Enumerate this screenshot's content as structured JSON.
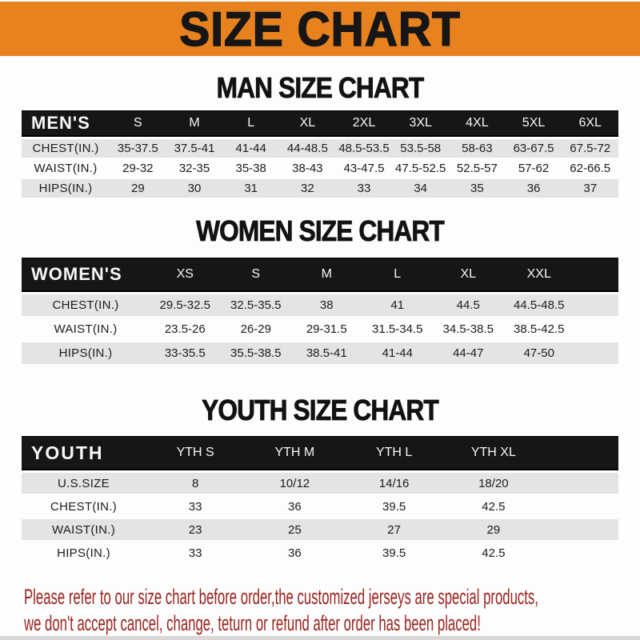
{
  "banner": {
    "title": "SIZE CHART"
  },
  "colors": {
    "banner_bg": "#E8821E",
    "band_bg": "#161616",
    "row_gray": "#E5E4E2",
    "footer_red": "#9B231E"
  },
  "sections": [
    {
      "heading": "MAN SIZE CHART",
      "table": {
        "label": "MEN'S",
        "columns": [
          "S",
          "M",
          "L",
          "XL",
          "2XL",
          "3XL",
          "4XL",
          "5XL",
          "6XL"
        ],
        "rows": [
          {
            "label": "CHEST(IN.)",
            "values": [
              "35-37.5",
              "37.5-41",
              "41-44",
              "44-48.5",
              "48.5-53.5",
              "53.5-58",
              "58-63",
              "63-67.5",
              "67.5-72"
            ]
          },
          {
            "label": "WAIST(IN.)",
            "values": [
              "29-32",
              "32-35",
              "35-38",
              "38-43",
              "43-47.5",
              "47.5-52.5",
              "52.5-57",
              "57-62",
              "62-66.5"
            ]
          },
          {
            "label": "HIPS(IN.)",
            "values": [
              "29",
              "30",
              "31",
              "32",
              "33",
              "34",
              "35",
              "36",
              "37"
            ]
          }
        ]
      }
    },
    {
      "heading": "WOMEN SIZE CHART",
      "table": {
        "label": "WOMEN'S",
        "columns": [
          "XS",
          "S",
          "M",
          "L",
          "XL",
          "XXL"
        ],
        "rows": [
          {
            "label": "CHEST(IN.)",
            "values": [
              "29.5-32.5",
              "32.5-35.5",
              "38",
              "41",
              "44.5",
              "44.5-48.5"
            ]
          },
          {
            "label": "WAIST(IN.)",
            "values": [
              "23.5-26",
              "26-29",
              "29-31.5",
              "31.5-34.5",
              "34.5-38.5",
              "38.5-42.5"
            ]
          },
          {
            "label": "HIPS(IN.)",
            "values": [
              "33-35.5",
              "35.5-38.5",
              "38.5-41",
              "41-44",
              "44-47",
              "47-50"
            ]
          }
        ]
      }
    },
    {
      "heading": "YOUTH SIZE CHART",
      "table": {
        "label": "YOUTH",
        "columns": [
          "YTH S",
          "YTH M",
          "YTH L",
          "YTH XL"
        ],
        "rows": [
          {
            "label": "U.S.SIZE",
            "values": [
              "8",
              "10/12",
              "14/16",
              "18/20"
            ]
          },
          {
            "label": "CHEST(IN.)",
            "values": [
              "33",
              "36",
              "39.5",
              "42.5"
            ]
          },
          {
            "label": "WAIST(IN.)",
            "values": [
              "23",
              "25",
              "27",
              "29"
            ]
          },
          {
            "label": "HIPS(IN.)",
            "values": [
              "33",
              "36",
              "39.5",
              "42.5"
            ]
          }
        ]
      }
    }
  ],
  "footer": {
    "line1": "Please refer to our size chart before order,the customized jerseys are special products,",
    "line2": "we don't accept cancel, change, teturn or refund after order has been placed!"
  }
}
